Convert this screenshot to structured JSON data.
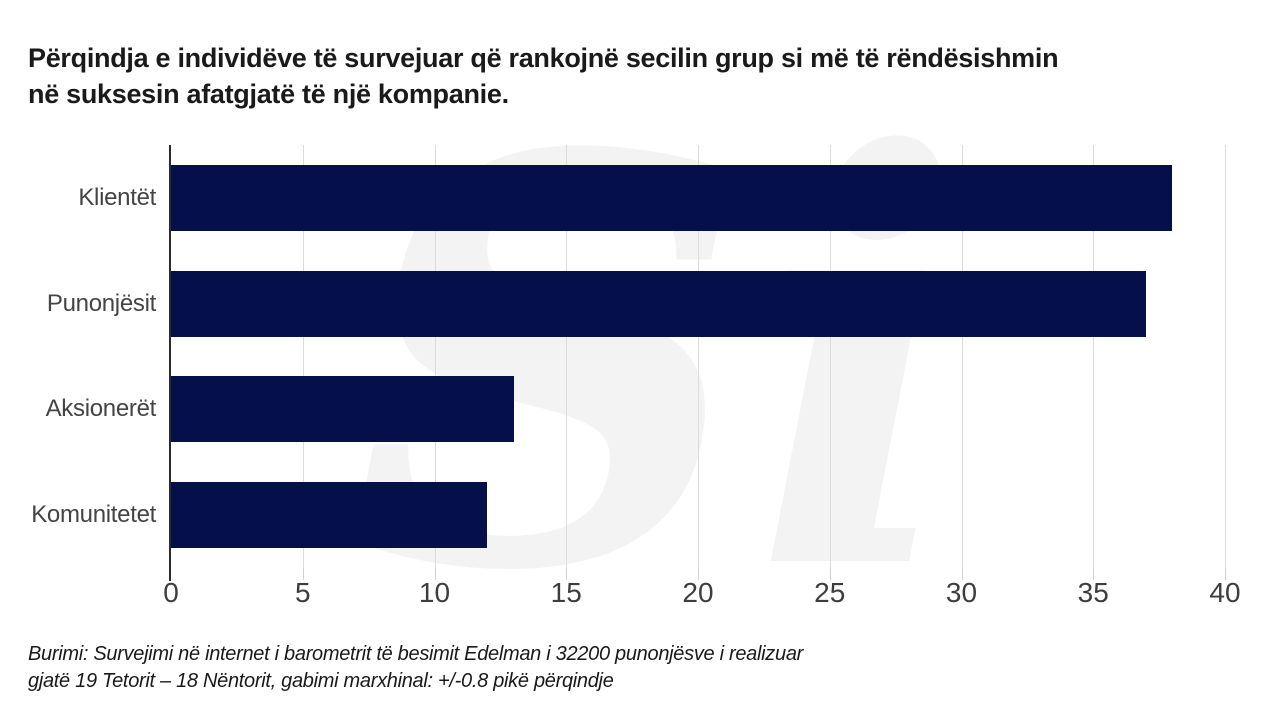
{
  "title": {
    "lines": [
      "Përqindja e individëve të survejuar që rankojnë secilin grup si më të rëndësishmin",
      "në suksesin afatgjatë të një kompanie."
    ]
  },
  "watermark": {
    "text": "Si",
    "color": "#f3f3f3"
  },
  "source": {
    "lines": [
      "Burimi: Survejimi në internet i barometrit të besimit Edelman i 32200 punonjësve i realizuar",
      "gjatë 19 Tetorit – 18 Nëntorit, gabimi marxhinal: +/-0.8 pikë përqindje"
    ]
  },
  "chart_data": {
    "type": "bar",
    "orientation": "horizontal",
    "title": "Përqindja e individëve të survejuar që rankojnë secilin grup si më të rëndësishmin në suksesin afatgjatë të një kompanie.",
    "categories": [
      "Klientët",
      "Punonjësit",
      "Aksionerët",
      "Komunitetet"
    ],
    "values": [
      38,
      37,
      13,
      12
    ],
    "xlim": [
      0,
      40
    ],
    "xticks": [
      0,
      5,
      10,
      15,
      20,
      25,
      30,
      35,
      40
    ],
    "grid": true,
    "legend": "none",
    "bar_color": "#05104a",
    "gridline_color": "#dcdcdc",
    "axis_color": "#2b2b2b",
    "label_color": "#444444"
  }
}
